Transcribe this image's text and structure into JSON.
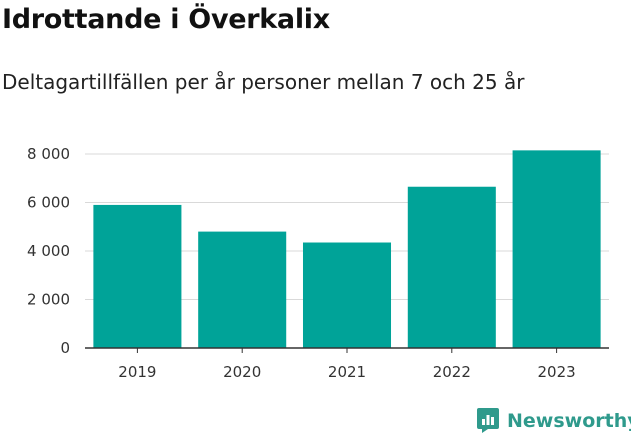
{
  "title": "Idrottande i Överkalix",
  "subtitle": "Deltagartillfällen per år personer mellan 7 och 25 år",
  "brand": {
    "name": "Newsworthy",
    "icon": "newsworthy-logo-icon",
    "color": "#2f9a8c"
  },
  "colors": {
    "bar": "#00a398",
    "grid": "#d9d9d9",
    "axis": "#333333"
  },
  "chart_data": {
    "type": "bar",
    "title": "Idrottande i Överkalix",
    "subtitle": "Deltagartillfällen per år personer mellan 7 och 25 år",
    "categories": [
      "2019",
      "2020",
      "2021",
      "2022",
      "2023"
    ],
    "values": [
      5900,
      4800,
      4350,
      6650,
      8150
    ],
    "ylim": [
      0,
      8000
    ],
    "yticks": [
      0,
      2000,
      4000,
      6000,
      8000
    ],
    "ytick_labels": [
      "0",
      "2 000",
      "4 000",
      "6 000",
      "8 000"
    ],
    "xlabel": "",
    "ylabel": "",
    "grid": true,
    "legend": "none"
  }
}
